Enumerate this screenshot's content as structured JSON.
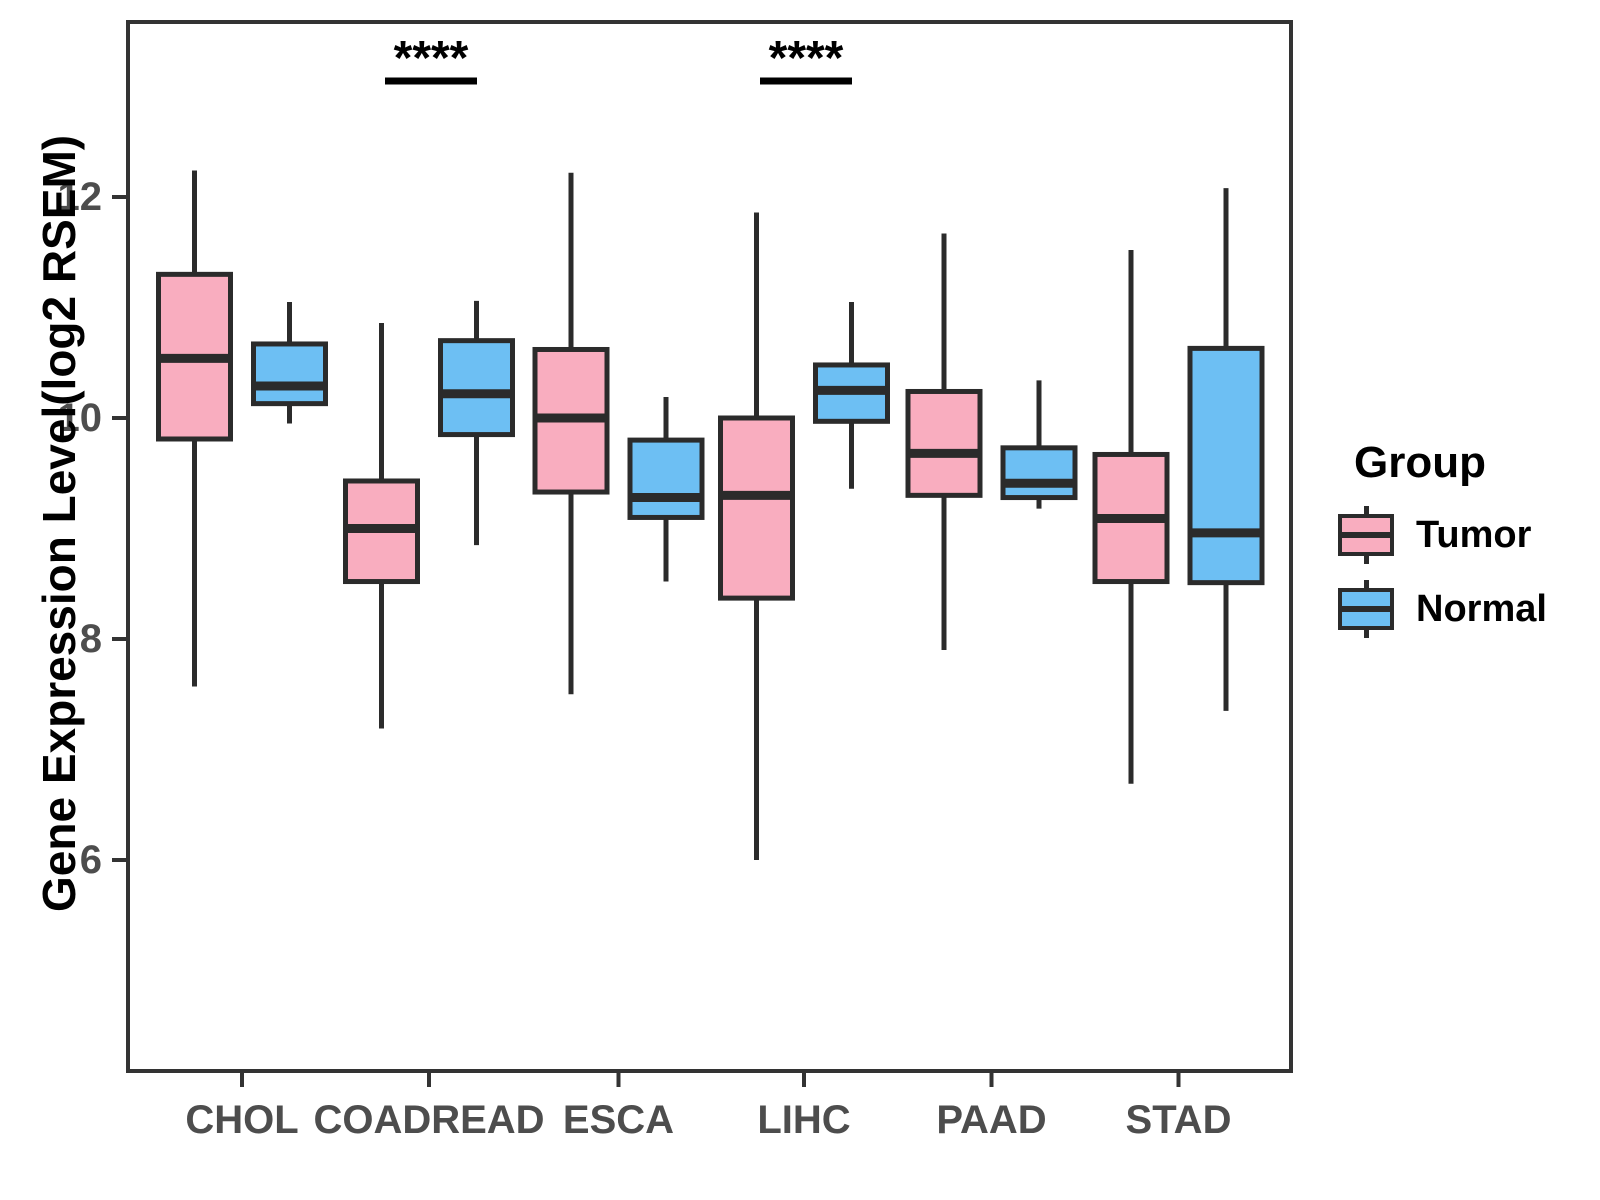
{
  "figure": {
    "background": "#ffffff"
  },
  "y_axis": {
    "title": "Gene Expression Level(log2 RSEM)",
    "tick_labels": [
      "6",
      "8",
      "10",
      "12"
    ],
    "tick_values": [
      6,
      8,
      10,
      12
    ],
    "color": "#4d4d4d"
  },
  "x_axis": {
    "categories": [
      "CHOL",
      "COADREAD",
      "ESCA",
      "LIHC",
      "PAAD",
      "STAD"
    ],
    "color": "#4d4d4d"
  },
  "legend": {
    "title": "Group",
    "items": [
      {
        "label": "Tumor",
        "color": "#f9adbf"
      },
      {
        "label": "Normal",
        "color": "#6dbff3"
      }
    ]
  },
  "significance": [
    {
      "category": "COADREAD",
      "label": "****"
    },
    {
      "category": "LIHC",
      "label": "****"
    }
  ],
  "chart_data": {
    "type": "boxplot",
    "title": "",
    "xlabel": "",
    "ylabel": "Gene Expression Level(log2 RSEM)",
    "ylim": [
      4.1,
      13.6
    ],
    "yticks": [
      6,
      8,
      10,
      12
    ],
    "grid": false,
    "legend_position": "right",
    "categories": [
      "CHOL",
      "COADREAD",
      "ESCA",
      "LIHC",
      "PAAD",
      "STAD"
    ],
    "series": [
      {
        "name": "Tumor",
        "color": "#f9adbf",
        "boxes": [
          {
            "category": "CHOL",
            "whisker_low": 7.57,
            "q1": 9.81,
            "median": 10.54,
            "q3": 11.3,
            "whisker_high": 12.24
          },
          {
            "category": "COADREAD",
            "whisker_low": 7.19,
            "q1": 8.52,
            "median": 9.0,
            "q3": 9.43,
            "whisker_high": 10.86
          },
          {
            "category": "ESCA",
            "whisker_low": 7.5,
            "q1": 9.33,
            "median": 10.0,
            "q3": 10.62,
            "whisker_high": 12.22
          },
          {
            "category": "LIHC",
            "whisker_low": 6.0,
            "q1": 8.37,
            "median": 9.3,
            "q3": 10.0,
            "whisker_high": 11.86
          },
          {
            "category": "PAAD",
            "whisker_low": 7.9,
            "q1": 9.3,
            "median": 9.68,
            "q3": 10.24,
            "whisker_high": 11.67
          },
          {
            "category": "STAD",
            "whisker_low": 6.69,
            "q1": 8.52,
            "median": 9.09,
            "q3": 9.67,
            "whisker_high": 11.52
          }
        ]
      },
      {
        "name": "Normal",
        "color": "#6dbff3",
        "boxes": [
          {
            "category": "CHOL",
            "whisker_low": 9.95,
            "q1": 10.13,
            "median": 10.29,
            "q3": 10.67,
            "whisker_high": 11.05
          },
          {
            "category": "COADREAD",
            "whisker_low": 8.85,
            "q1": 9.85,
            "median": 10.22,
            "q3": 10.7,
            "whisker_high": 11.06
          },
          {
            "category": "ESCA",
            "whisker_low": 8.52,
            "q1": 9.1,
            "median": 9.28,
            "q3": 9.8,
            "whisker_high": 10.19
          },
          {
            "category": "LIHC",
            "whisker_low": 9.36,
            "q1": 9.97,
            "median": 10.25,
            "q3": 10.48,
            "whisker_high": 11.05
          },
          {
            "category": "PAAD",
            "whisker_low": 9.18,
            "q1": 9.28,
            "median": 9.41,
            "q3": 9.73,
            "whisker_high": 10.34
          },
          {
            "category": "STAD",
            "whisker_low": 7.35,
            "q1": 8.51,
            "median": 8.96,
            "q3": 10.63,
            "whisker_high": 12.08
          }
        ]
      }
    ]
  }
}
